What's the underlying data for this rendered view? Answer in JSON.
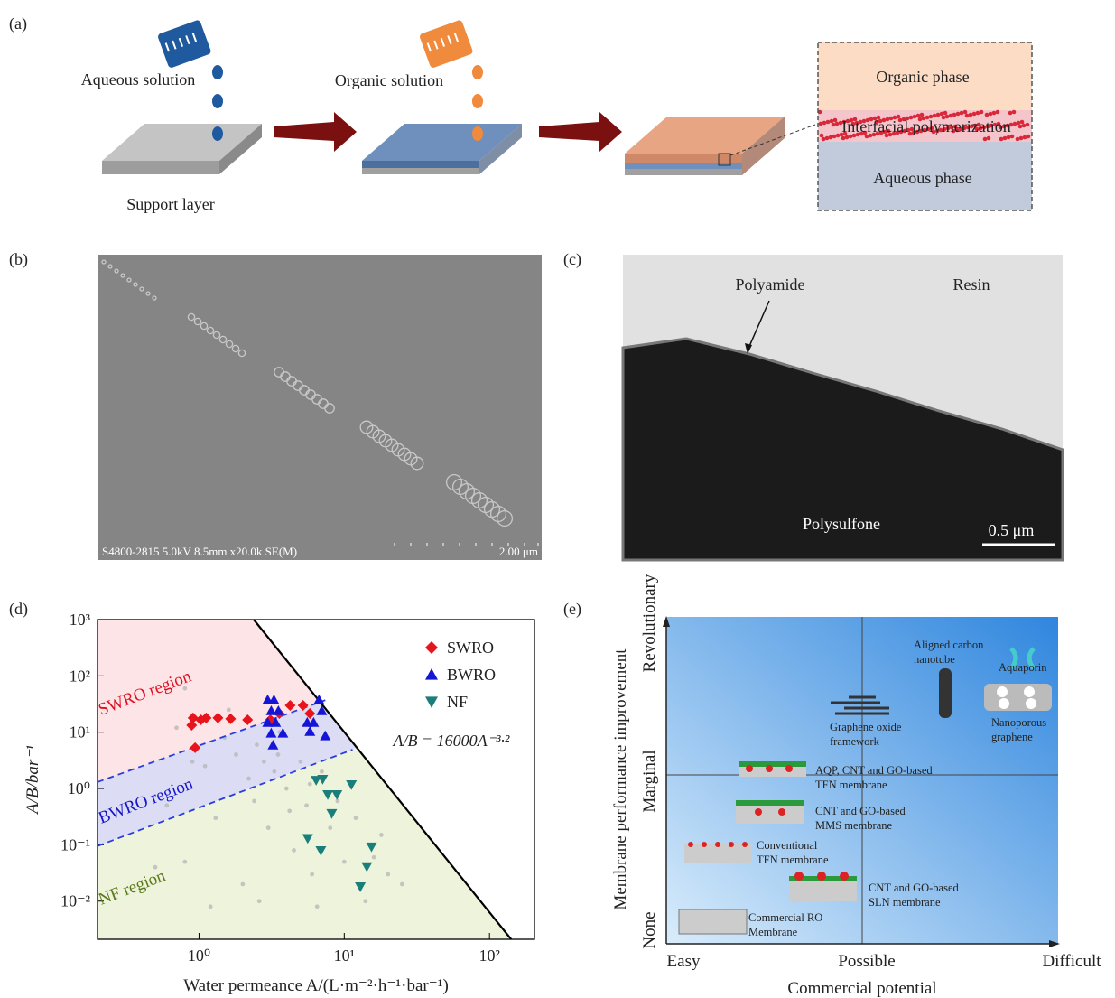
{
  "panel_a": {
    "label": "(a)",
    "aqueous_solution": "Aqueous solution",
    "organic_solution": "Organic solution",
    "support_layer": "Support layer",
    "organic_phase": "Organic phase",
    "interfacial": "Interfacial polymerization",
    "aqueous_phase": "Aqueous phase"
  },
  "panel_b": {
    "label": "(b)",
    "info": "S4800-2815 5.0kV 8.5mm x20.0k SE(M)",
    "scale": "2.00 μm"
  },
  "panel_c": {
    "label": "(c)",
    "polyamide": "Polyamide",
    "resin": "Resin",
    "polysulfone": "Polysulfone",
    "scale": "0.5 μm"
  },
  "panel_d": {
    "label": "(d)"
  },
  "chart_data": {
    "type": "scatter",
    "xlabel": "Water permeance A/(L·m⁻²·h⁻¹·bar⁻¹)",
    "ylabel": "A/B/bar⁻¹",
    "log_x": true,
    "log_y": true,
    "xlim": [
      0.2,
      204
    ],
    "ylim": [
      0.0021,
      1000
    ],
    "xticks": [
      {
        "value": 1,
        "label": "10⁰"
      },
      {
        "value": 10,
        "label": "10¹"
      },
      {
        "value": 100,
        "label": "10²"
      }
    ],
    "yticks": [
      {
        "value": 0.01,
        "label": "10⁻²"
      },
      {
        "value": 0.1,
        "label": "10⁻¹"
      },
      {
        "value": 1,
        "label": "10⁰"
      },
      {
        "value": 10,
        "label": "10¹"
      },
      {
        "value": 100,
        "label": "10²"
      },
      {
        "value": 1000,
        "label": "10³"
      }
    ],
    "legend": "upper right",
    "annotation": "A/B = 16000A⁻³·²",
    "region_labels": [
      "SWRO region",
      "BWRO region",
      "NF region"
    ],
    "region_colors": [
      "#fde4e7",
      "#dcdcf5",
      "#eef4dc"
    ],
    "series": [
      {
        "name": "SWRO",
        "color": "#e8141b",
        "marker": "diamond",
        "x": [
          0.91,
          1.03,
          0.89,
          1.12,
          1.35,
          1.65,
          0.94,
          2.16,
          3.1,
          4.24,
          5.2,
          5.8,
          3.57
        ],
        "values": [
          17.9,
          16.6,
          13.3,
          17.9,
          17.9,
          17.3,
          5.3,
          16.6,
          16.6,
          30,
          30,
          21.5,
          21.5
        ]
      },
      {
        "name": "BWRO",
        "color": "#1515d8",
        "marker": "triangle",
        "x": [
          2.97,
          3.28,
          3.14,
          3.52,
          2.97,
          3.37,
          3.14,
          3.78,
          5.56,
          6.15,
          6.7,
          7.0,
          7.4,
          5.8,
          3.23
        ],
        "values": [
          37.5,
          37.5,
          24,
          24,
          14.9,
          14.9,
          9.6,
          9.6,
          14.9,
          14.9,
          37.5,
          24,
          8.6,
          10.3,
          5.9
        ]
      },
      {
        "name": "NF",
        "color": "#1a7f7a",
        "marker": "down-triangle",
        "x": [
          6.4,
          7.1,
          7.7,
          8.9,
          11.2,
          8.2,
          5.6,
          6.9,
          15.4,
          14.3,
          12.9
        ],
        "values": [
          1.4,
          1.46,
          0.78,
          0.78,
          1.17,
          0.36,
          0.13,
          0.079,
          0.092,
          0.041,
          0.018
        ]
      },
      {
        "color": "#b5b5b5",
        "marker": "circle",
        "x": [
          0.6,
          0.7,
          0.8,
          0.9,
          1.1,
          1.3,
          1.5,
          1.8,
          2.0,
          2.2,
          2.5,
          2.8,
          3.0,
          3.3,
          3.6,
          4.0,
          4.5,
          5.0,
          5.5,
          6.0,
          7.0,
          8.0,
          9.0,
          10,
          12,
          14,
          16,
          18,
          20,
          25,
          1.2,
          2.4,
          3.5,
          4.2,
          5.8,
          0.5,
          0.8,
          1.6,
          2.6,
          6.5
        ],
        "values": [
          0.5,
          12,
          0.05,
          3,
          2.5,
          0.3,
          8,
          4,
          0.02,
          1.5,
          6,
          3,
          0.2,
          2,
          10,
          1,
          0.08,
          3,
          0.5,
          0.03,
          2,
          0.2,
          0.6,
          0.05,
          0.3,
          0.01,
          0.06,
          0.15,
          0.03,
          0.02,
          0.008,
          0.6,
          4,
          0.4,
          1.2,
          0.04,
          60,
          25,
          0.01,
          0.008
        ]
      },
      {
        "type": "line",
        "color": "#000000",
        "x": [
          2.38,
          141
        ],
        "values": [
          1000,
          0.0021
        ]
      },
      {
        "type": "line",
        "style": "dashed",
        "color": "#2a3de0",
        "x": [
          0.2,
          7.4
        ],
        "values": [
          1.3,
          37
        ]
      },
      {
        "type": "line",
        "style": "dashed",
        "color": "#2a3de0",
        "x": [
          0.2,
          11.4
        ],
        "values": [
          0.095,
          4.9
        ]
      }
    ]
  },
  "panel_e": {
    "label": "(e)",
    "x_axis_label": "Commercial potential",
    "y_axis_label": "Membrane performance improvement",
    "x_levels": [
      "Easy",
      "Possible",
      "Difficult"
    ],
    "y_levels": [
      "None",
      "Marginal",
      "Revolutionary"
    ],
    "items": [
      [
        "Aligned carbon",
        "nanotube"
      ],
      [
        "Aquaporin"
      ],
      [
        "Graphene oxide",
        "framework"
      ],
      [
        "Nanoporous",
        "graphene"
      ],
      [
        "AQP, CNT and GO-based",
        "TFN membrane"
      ],
      [
        "CNT and GO-based",
        "MMS membrane"
      ],
      [
        "Conventional",
        "TFN membrane"
      ],
      [
        "CNT and GO-based",
        "SLN membrane"
      ],
      [
        "Commercial RO",
        "Membrane"
      ]
    ]
  }
}
